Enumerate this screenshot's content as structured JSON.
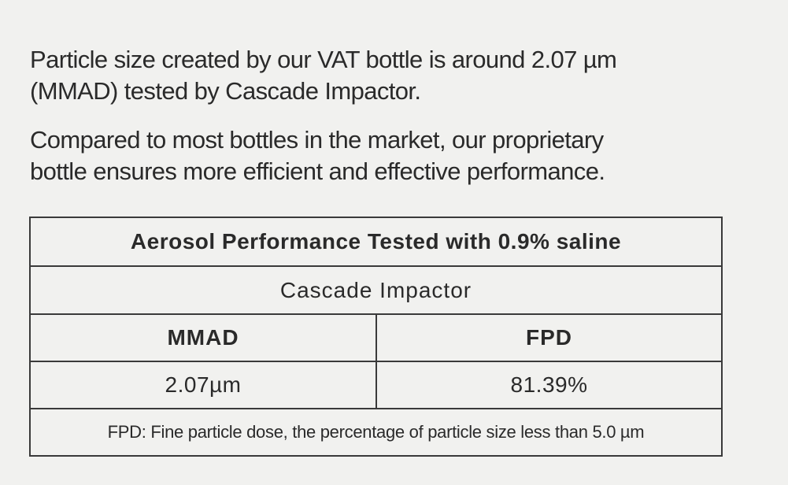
{
  "paragraphs": [
    [
      "Particle size created by our VAT bottle is around 2.07 µm",
      "(MMAD) tested by Cascade Impactor."
    ],
    [
      "Compared to most bottles in the market, our proprietary",
      "bottle ensures more efficient and effective performance."
    ]
  ],
  "table": {
    "title": "Aerosol Performance Tested with 0.9% saline",
    "subtitle": "Cascade Impactor",
    "headers": [
      "MMAD",
      "FPD"
    ],
    "rows": [
      [
        "2.07µm",
        "81.39%"
      ]
    ],
    "footnote": "FPD: Fine particle dose, the percentage of particle size less than 5.0 µm"
  }
}
